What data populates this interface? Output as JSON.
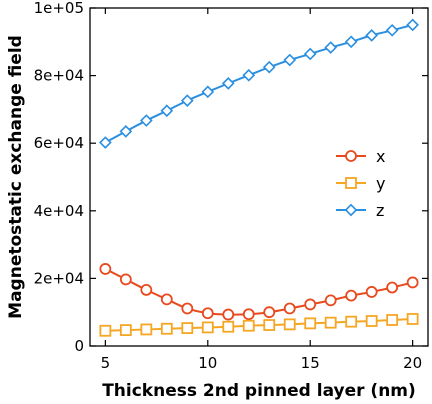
{
  "chart_data": {
    "type": "line",
    "title": "",
    "xlabel": "Thickness 2nd pinned layer (nm)",
    "ylabel": "Magnetostatic exchange field",
    "xlim": [
      4.25,
      20.75
    ],
    "ylim": [
      0,
      100000
    ],
    "x_ticks": [
      5,
      10,
      15,
      20
    ],
    "x_tick_labels": [
      "5",
      "10",
      "15",
      "20"
    ],
    "y_ticks": [
      0,
      20000,
      40000,
      60000,
      80000,
      100000
    ],
    "y_tick_labels": [
      "0",
      "2e+04",
      "4e+04",
      "6e+04",
      "8e+04",
      "1e+05"
    ],
    "grid": false,
    "legend_position": "right",
    "x": [
      5,
      6,
      7,
      8,
      9,
      10,
      11,
      12,
      13,
      14,
      15,
      16,
      17,
      18,
      19,
      20
    ],
    "series": [
      {
        "name": "x",
        "color": "#e8491d",
        "marker": "circle",
        "values": [
          22800,
          19700,
          16600,
          13800,
          11100,
          9700,
          9300,
          9400,
          10000,
          11100,
          12300,
          13500,
          14900,
          16000,
          17300,
          18800
        ]
      },
      {
        "name": "y",
        "color": "#f5a623",
        "marker": "square",
        "values": [
          4500,
          4700,
          4900,
          5100,
          5300,
          5500,
          5700,
          6000,
          6200,
          6400,
          6700,
          6900,
          7200,
          7400,
          7700,
          8000
        ]
      },
      {
        "name": "z",
        "color": "#2a8fe0",
        "marker": "diamond",
        "values": [
          60200,
          63500,
          66700,
          69600,
          72600,
          75200,
          77700,
          80100,
          82500,
          84600,
          86400,
          88300,
          90000,
          91900,
          93400,
          95000
        ]
      }
    ]
  }
}
